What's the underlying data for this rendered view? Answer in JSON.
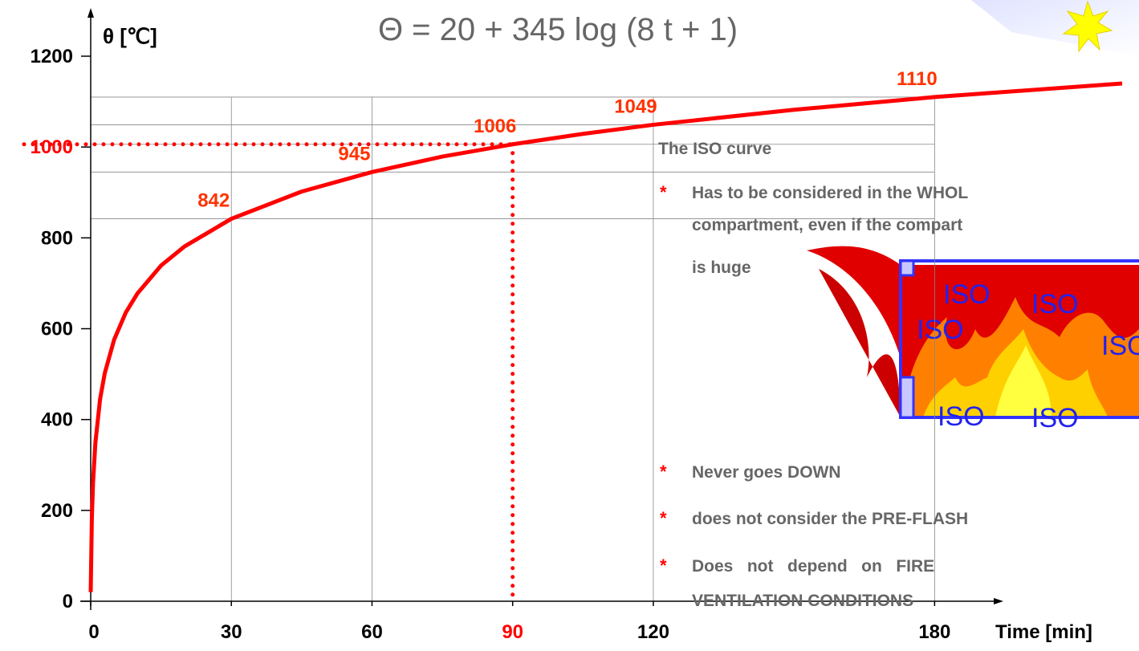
{
  "chart_data": {
    "type": "line",
    "title": "Θ = 20 + 345 log (8 t + 1)",
    "y_label": "θ [℃]",
    "x_label": "Time [min]",
    "x": [
      0,
      0.25,
      0.5,
      1,
      2,
      3,
      5,
      7.5,
      10,
      15,
      20,
      30,
      45,
      60,
      75,
      90,
      105,
      120,
      150,
      180,
      220
    ],
    "series": [
      {
        "color": "#ff0000",
        "values": [
          20,
          185,
          261,
          349,
          445,
          502,
          576,
          636,
          678,
          739,
          781,
          842,
          902,
          945,
          979,
          1006,
          1029,
          1049,
          1082,
          1110,
          1140
        ]
      }
    ],
    "labeled_points": {
      "color": "#ff3300",
      "x": [
        30,
        60,
        90,
        120,
        180
      ],
      "values": [
        842,
        945,
        1006,
        1049,
        1110
      ]
    },
    "highlight": {
      "x": 90,
      "y": 1006,
      "ytick": 1000,
      "color": "#ff0000"
    },
    "xlim": [
      0,
      220
    ],
    "ylim": [
      0,
      1200
    ],
    "xticks": [
      0,
      30,
      60,
      90,
      120,
      180
    ],
    "yticks": [
      0,
      200,
      400,
      600,
      800,
      1000,
      1200
    ]
  },
  "notes": {
    "heading": "The ISO curve",
    "bullet": "*",
    "items": [
      [
        "Has to be considered in the WHOL",
        "compartment, even if the compart",
        "is huge"
      ],
      [
        "Never goes DOWN"
      ],
      [
        "does not consider the PRE-FLASH"
      ],
      [
        "Does   not   depend   on   FIRE",
        "VENTILATION CONDITIONS"
      ]
    ]
  },
  "fire_labels": [
    "ISO",
    "ISO",
    "ISO",
    "ISO",
    "ISO",
    "ISO"
  ]
}
